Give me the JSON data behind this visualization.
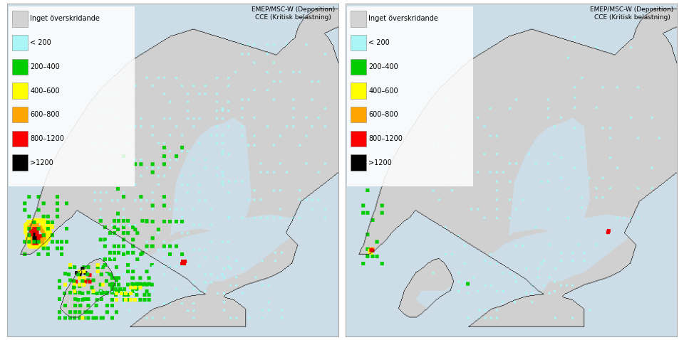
{
  "legend_labels": [
    "Inget överskridande",
    "< 200",
    "200–400",
    "400–600",
    "600–800",
    "800–1200",
    ">1200"
  ],
  "legend_colors": [
    "#d3d3d3",
    "#aaf5f5",
    "#00cc00",
    "#ffff00",
    "#ffa500",
    "#ff0000",
    "#000000"
  ],
  "source_text_line1": "EMEP/MSC-W (Deposition)",
  "source_text_line2": "CCE (Kritisk belastning)",
  "sea_color": "#ccdde8",
  "land_color": "#d0d0d0",
  "border_color": "#444444",
  "fig_bg": "#ffffff",
  "panel_border_color": "#aaaaaa"
}
